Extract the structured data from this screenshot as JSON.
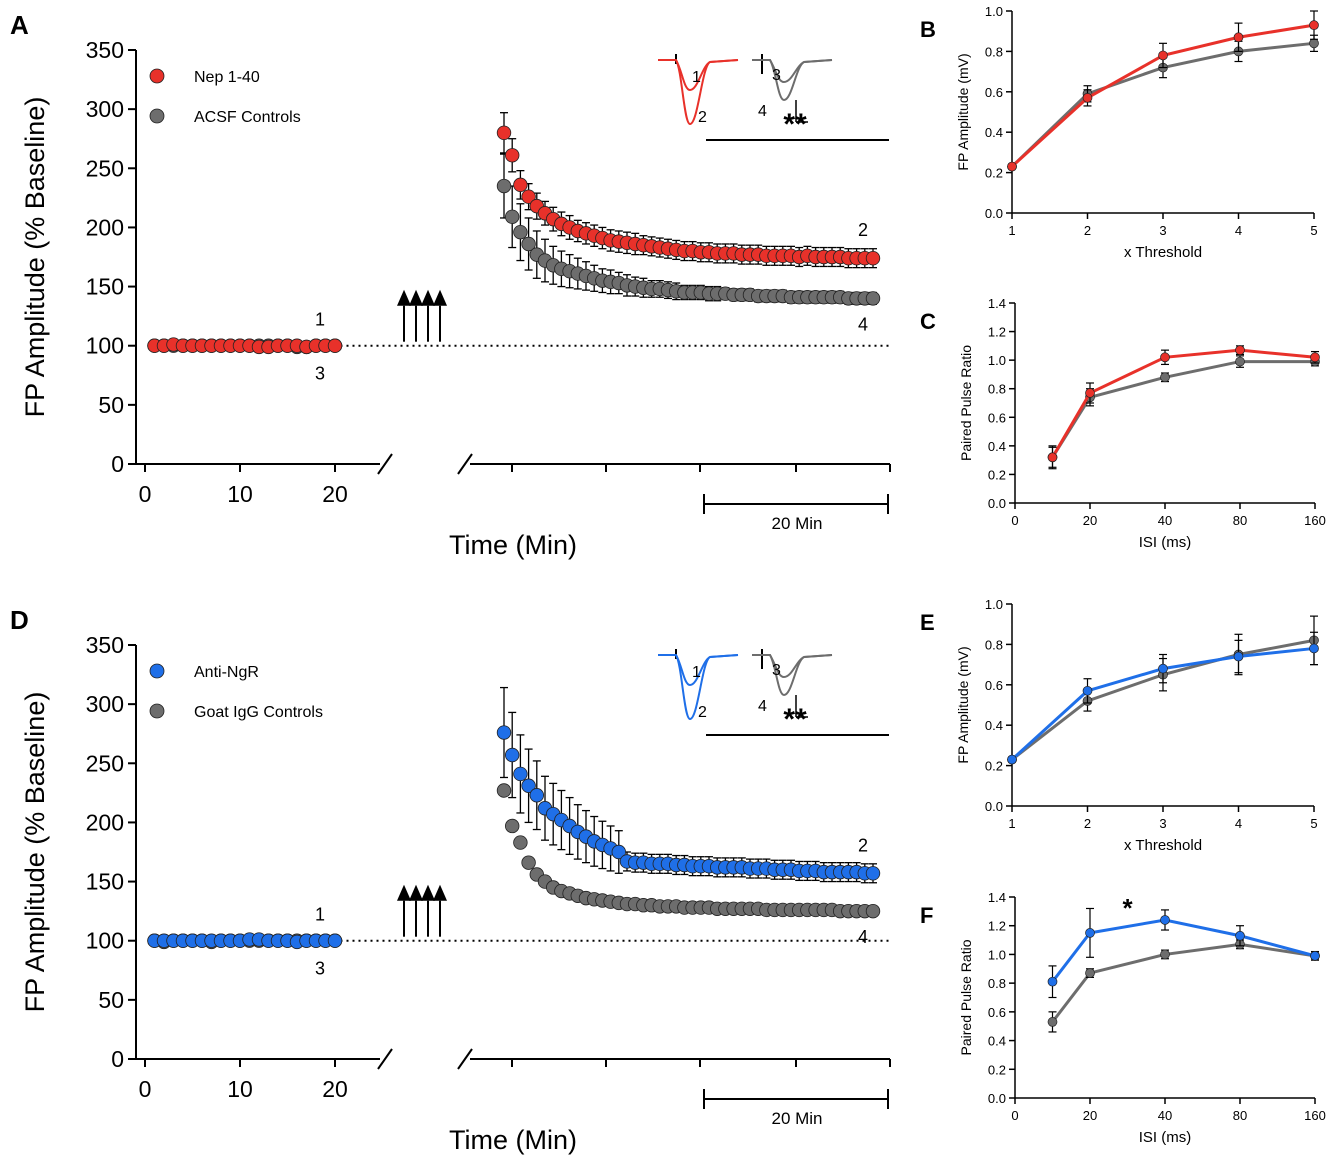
{
  "colors": {
    "red": "#e8312a",
    "gray": "#6d6d6d",
    "blue": "#1f6fe8",
    "black": "#000000"
  },
  "chart_data": [
    {
      "id": "A",
      "panel_label": "A",
      "type": "scatter",
      "ylabel": "FP Amplitude (% Baseline)",
      "xlabel": "Time (Min)",
      "ylim": [
        0,
        350
      ],
      "yticks": [
        0,
        50,
        100,
        150,
        200,
        250,
        300,
        350
      ],
      "xticks_baseline": [
        0,
        10,
        20
      ],
      "scale_bar_label": "20 Min",
      "significance": "**",
      "trace_labels": [
        "1",
        "2",
        "3",
        "4"
      ],
      "baseline_labels": [
        "1",
        "3"
      ],
      "end_labels": [
        "2",
        "4"
      ],
      "baseline_x": [
        1,
        2,
        3,
        4,
        5,
        6,
        7,
        8,
        9,
        10,
        11,
        12,
        13,
        14,
        15,
        16,
        17,
        18,
        19,
        20
      ],
      "series": [
        {
          "name": "Nep 1-40",
          "color": "red",
          "baseline": [
            100,
            100,
            101,
            100,
            100,
            100,
            100,
            100,
            100,
            100,
            100,
            99,
            99,
            100,
            100,
            100,
            99,
            100,
            100,
            100
          ],
          "post": [
            280,
            261,
            236,
            226,
            218,
            212,
            207,
            203,
            200,
            197,
            195,
            193,
            191,
            189,
            188,
            187,
            186,
            185,
            184,
            183,
            182,
            181,
            180,
            180,
            179,
            179,
            178,
            178,
            178,
            177,
            177,
            177,
            176,
            176,
            176,
            176,
            175,
            176,
            175,
            175,
            175,
            175,
            174,
            174,
            174,
            174
          ],
          "post_err": [
            17,
            14,
            12,
            11,
            11,
            10,
            10,
            10,
            10,
            9,
            9,
            9,
            9,
            9,
            9,
            9,
            9,
            8,
            8,
            8,
            8,
            8,
            8,
            8,
            8,
            8,
            8,
            8,
            8,
            8,
            8,
            8,
            8,
            8,
            8,
            8,
            8,
            8,
            8,
            8,
            8,
            8,
            8,
            8,
            8,
            8
          ]
        },
        {
          "name": "ACSF Controls",
          "color": "gray",
          "baseline": [
            100,
            100,
            100,
            100,
            100,
            100,
            100,
            100,
            100,
            100,
            100,
            100,
            100,
            100,
            100,
            99,
            99,
            100,
            100,
            100
          ],
          "post": [
            235,
            209,
            196,
            186,
            177,
            172,
            168,
            165,
            163,
            161,
            159,
            157,
            155,
            154,
            153,
            151,
            150,
            149,
            148,
            148,
            147,
            146,
            145,
            145,
            145,
            144,
            144,
            144,
            143,
            143,
            143,
            142,
            142,
            142,
            142,
            141,
            141,
            141,
            141,
            141,
            141,
            141,
            140,
            140,
            140,
            140
          ],
          "post_err": [
            27,
            26,
            24,
            22,
            20,
            18,
            16,
            15,
            14,
            13,
            12,
            11,
            10,
            10,
            9,
            9,
            8,
            8,
            7,
            7,
            7,
            7,
            6,
            6,
            6,
            6,
            6,
            5,
            5,
            5,
            5,
            5,
            5,
            5,
            5,
            5,
            5,
            5,
            5,
            5,
            5,
            5,
            5,
            5,
            5,
            5
          ]
        }
      ]
    },
    {
      "id": "D",
      "panel_label": "D",
      "type": "scatter",
      "ylabel": "FP Amplitude (% Baseline)",
      "xlabel": "Time (Min)",
      "ylim": [
        0,
        350
      ],
      "yticks": [
        0,
        50,
        100,
        150,
        200,
        250,
        300,
        350
      ],
      "xticks_baseline": [
        0,
        10,
        20
      ],
      "scale_bar_label": "20 Min",
      "significance": "**",
      "trace_labels": [
        "1",
        "2",
        "3",
        "4"
      ],
      "baseline_labels": [
        "1",
        "3"
      ],
      "end_labels": [
        "2",
        "4"
      ],
      "baseline_x": [
        1,
        2,
        3,
        4,
        5,
        6,
        7,
        8,
        9,
        10,
        11,
        12,
        13,
        14,
        15,
        16,
        17,
        18,
        19,
        20
      ],
      "series": [
        {
          "name": "Anti-NgR",
          "color": "blue",
          "baseline": [
            100,
            100,
            100,
            100,
            100,
            100,
            100,
            100,
            100,
            100,
            101,
            101,
            100,
            100,
            100,
            99,
            100,
            100,
            100,
            100
          ],
          "post": [
            276,
            257,
            241,
            231,
            223,
            212,
            207,
            202,
            197,
            192,
            188,
            184,
            181,
            178,
            175,
            167,
            166,
            166,
            165,
            165,
            165,
            164,
            164,
            163,
            163,
            163,
            162,
            162,
            162,
            162,
            161,
            161,
            161,
            160,
            160,
            160,
            159,
            159,
            159,
            158,
            158,
            158,
            158,
            158,
            157,
            157
          ],
          "post_err": [
            38,
            36,
            33,
            31,
            29,
            27,
            26,
            25,
            24,
            23,
            22,
            21,
            20,
            19,
            18,
            8,
            8,
            8,
            8,
            8,
            8,
            8,
            8,
            8,
            8,
            8,
            8,
            8,
            8,
            8,
            8,
            8,
            8,
            8,
            8,
            8,
            8,
            8,
            8,
            8,
            8,
            8,
            8,
            8,
            8,
            8
          ]
        },
        {
          "name": "Goat IgG Controls",
          "color": "gray",
          "baseline": [
            100,
            99,
            100,
            100,
            100,
            100,
            99,
            100,
            100,
            100,
            100,
            100,
            100,
            100,
            100,
            100,
            100,
            100,
            100,
            100
          ],
          "post": [
            227,
            197,
            183,
            166,
            156,
            150,
            145,
            142,
            140,
            138,
            136,
            135,
            134,
            133,
            132,
            131,
            131,
            130,
            130,
            129,
            129,
            129,
            128,
            128,
            128,
            128,
            127,
            127,
            127,
            127,
            127,
            127,
            126,
            126,
            126,
            126,
            126,
            126,
            126,
            126,
            126,
            125,
            125,
            125,
            125,
            125
          ],
          "post_err": [
            0,
            4,
            0,
            0,
            0,
            0,
            0,
            0,
            0,
            0,
            0,
            0,
            0,
            0,
            0,
            0,
            0,
            0,
            0,
            0,
            0,
            0,
            0,
            0,
            0,
            0,
            0,
            0,
            0,
            0,
            0,
            0,
            0,
            0,
            0,
            0,
            0,
            0,
            0,
            0,
            0,
            0,
            0,
            0,
            0,
            0
          ]
        }
      ]
    },
    {
      "id": "B",
      "panel_label": "B",
      "type": "line",
      "ylabel": "FP Amplitude (mV)",
      "xlabel": "x Threshold",
      "categories": [
        "1",
        "2",
        "3",
        "4",
        "5"
      ],
      "ylim": [
        0,
        1.0
      ],
      "yticks": [
        "0.0",
        "0.2",
        "0.4",
        "0.6",
        "0.8",
        "1.0"
      ],
      "series": [
        {
          "color": "gray",
          "values": [
            0.23,
            0.59,
            0.72,
            0.8,
            0.84
          ],
          "err": [
            0.01,
            0.04,
            0.05,
            0.05,
            0.04
          ]
        },
        {
          "color": "red",
          "values": [
            0.23,
            0.57,
            0.78,
            0.87,
            0.93
          ],
          "err": [
            0.01,
            0.04,
            0.06,
            0.07,
            0.07
          ]
        }
      ]
    },
    {
      "id": "C",
      "panel_label": "C",
      "type": "line",
      "ylabel": "Paired Pulse Ratio",
      "xlabel": "ISI (ms)",
      "categories": [
        "0",
        "20",
        "40",
        "80",
        "160"
      ],
      "x_positions": [
        10,
        20,
        40,
        80,
        160
      ],
      "ylim": [
        0,
        1.4
      ],
      "yticks": [
        "0.0",
        "0.2",
        "0.4",
        "0.6",
        "0.8",
        "1.0",
        "1.2",
        "1.4"
      ],
      "series": [
        {
          "color": "gray",
          "values": [
            0.32,
            0.74,
            0.88,
            0.99,
            0.99
          ],
          "err": [
            0.08,
            0.06,
            0.03,
            0.04,
            0.03
          ]
        },
        {
          "color": "red",
          "values": [
            0.32,
            0.77,
            1.02,
            1.07,
            1.02
          ],
          "err": [
            0.07,
            0.07,
            0.05,
            0.03,
            0.04
          ]
        }
      ]
    },
    {
      "id": "E",
      "panel_label": "E",
      "type": "line",
      "ylabel": "FP Amplitude (mV)",
      "xlabel": "x Threshold",
      "categories": [
        "1",
        "2",
        "3",
        "4",
        "5"
      ],
      "ylim": [
        0,
        1.0
      ],
      "yticks": [
        "0.0",
        "0.2",
        "0.4",
        "0.6",
        "0.8",
        "1.0"
      ],
      "series": [
        {
          "color": "gray",
          "values": [
            0.23,
            0.52,
            0.65,
            0.75,
            0.82
          ],
          "err": [
            0.01,
            0.05,
            0.08,
            0.1,
            0.12
          ]
        },
        {
          "color": "blue",
          "values": [
            0.23,
            0.57,
            0.68,
            0.74,
            0.78
          ],
          "err": [
            0.01,
            0.06,
            0.07,
            0.08,
            0.08
          ]
        }
      ]
    },
    {
      "id": "F",
      "panel_label": "F",
      "type": "line",
      "ylabel": "Paired Pulse Ratio",
      "xlabel": "ISI (ms)",
      "categories": [
        "0",
        "20",
        "40",
        "80",
        "160"
      ],
      "x_positions": [
        10,
        20,
        40,
        80,
        160
      ],
      "ylim": [
        0,
        1.4
      ],
      "yticks": [
        "0.0",
        "0.2",
        "0.4",
        "0.6",
        "0.8",
        "1.0",
        "1.2",
        "1.4"
      ],
      "significance": "*",
      "series": [
        {
          "color": "gray",
          "values": [
            0.53,
            0.87,
            1.0,
            1.07,
            0.99
          ],
          "err": [
            0.07,
            0.03,
            0.03,
            0.03,
            0.02
          ]
        },
        {
          "color": "blue",
          "values": [
            0.81,
            1.15,
            1.24,
            1.13,
            0.99
          ],
          "err": [
            0.11,
            0.17,
            0.07,
            0.07,
            0.03
          ]
        }
      ]
    }
  ]
}
